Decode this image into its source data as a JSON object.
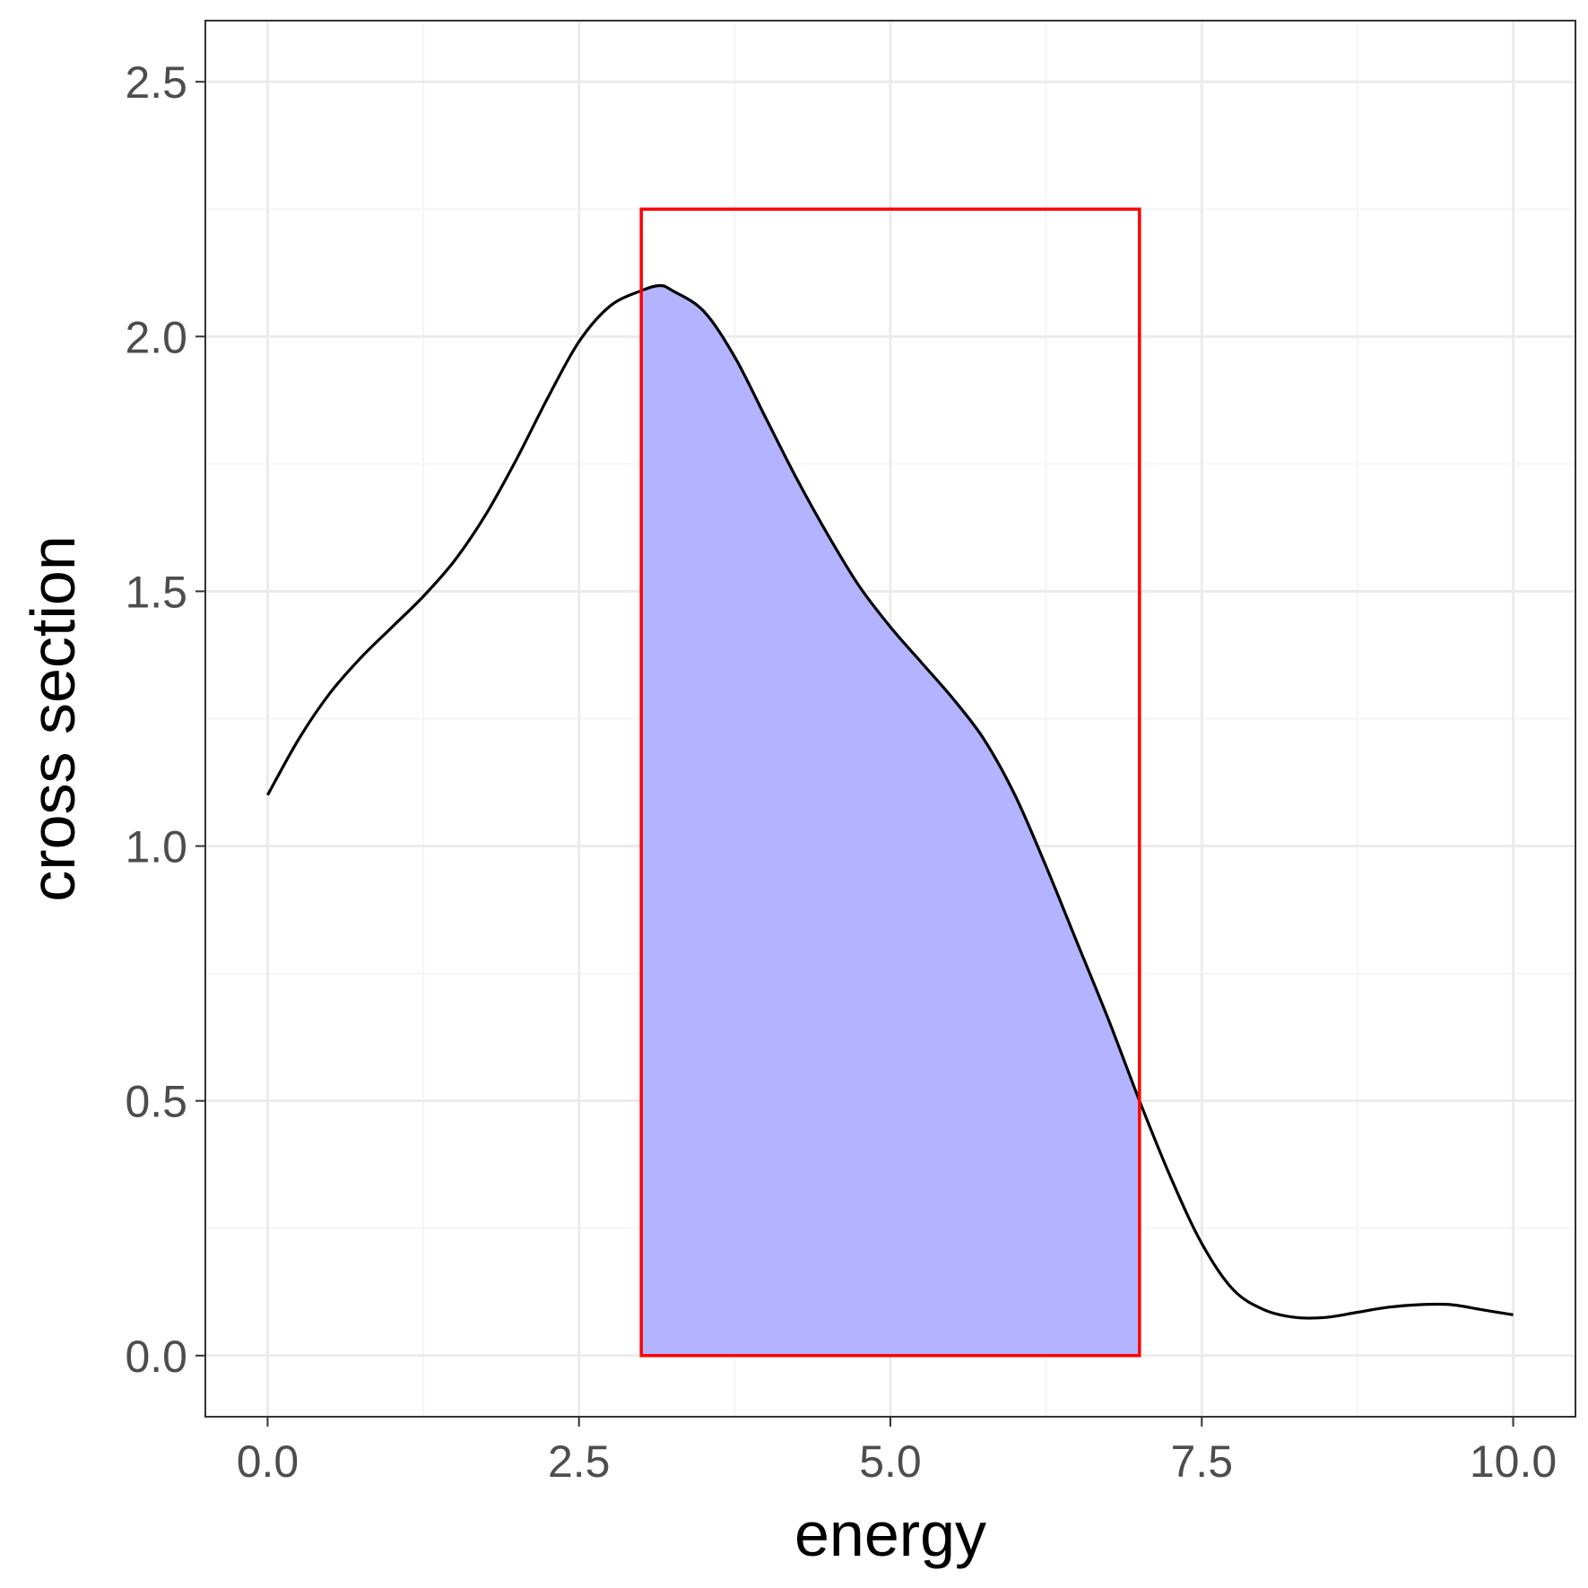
{
  "chart_data": {
    "type": "area",
    "xlabel": "energy",
    "ylabel": "cross section",
    "xlim": [
      -0.5,
      10.5
    ],
    "ylim": [
      -0.12,
      2.62
    ],
    "x_ticks": [
      "0.0",
      "2.5",
      "5.0",
      "7.5",
      "10.0"
    ],
    "x_tick_values": [
      0,
      2.5,
      5,
      7.5,
      10
    ],
    "y_ticks": [
      "0.0",
      "0.5",
      "1.0",
      "1.5",
      "2.0",
      "2.5"
    ],
    "y_tick_values": [
      0,
      0.5,
      1,
      1.5,
      2,
      2.5
    ],
    "grid": true,
    "series": [
      {
        "x": [
          0,
          0.25,
          0.5,
          0.75,
          1,
          1.25,
          1.5,
          1.75,
          2,
          2.25,
          2.5,
          2.75,
          3,
          3.15,
          3.25,
          3.5,
          3.75,
          4,
          4.25,
          4.5,
          4.75,
          5,
          5.25,
          5.5,
          5.75,
          6,
          6.25,
          6.5,
          6.75,
          7,
          7.25,
          7.5,
          7.75,
          8,
          8.25,
          8.5,
          8.75,
          9,
          9.25,
          9.5,
          9.75,
          10
        ],
        "y": [
          1.1,
          1.21,
          1.3,
          1.37,
          1.43,
          1.49,
          1.56,
          1.65,
          1.76,
          1.88,
          1.99,
          2.06,
          2.09,
          2.1,
          2.09,
          2.05,
          1.96,
          1.84,
          1.72,
          1.61,
          1.51,
          1.43,
          1.36,
          1.29,
          1.21,
          1.1,
          0.96,
          0.81,
          0.66,
          0.5,
          0.35,
          0.22,
          0.13,
          0.09,
          0.075,
          0.075,
          0.085,
          0.095,
          0.1,
          0.1,
          0.09,
          0.08
        ],
        "color": "#000000"
      }
    ],
    "shaded_region": {
      "x_from": 3,
      "x_to": 7,
      "fill": "#b3b3ff"
    },
    "highlight_rect": {
      "x_from": 3,
      "x_to": 7,
      "y_from": 0,
      "y_to": 2.25,
      "stroke": "#ff0000"
    },
    "colors": {
      "background": "#ffffff",
      "grid_major": "#ebebeb",
      "grid_minor": "#f5f5f5",
      "panel_border": "#333333",
      "tick_text": "#4d4d4d"
    }
  }
}
